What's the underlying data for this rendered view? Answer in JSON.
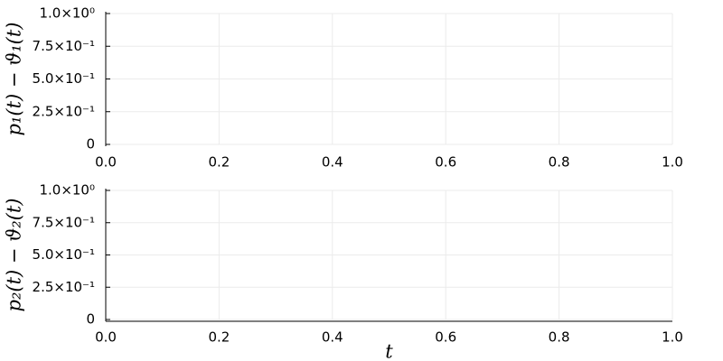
{
  "chart_data": [
    {
      "type": "line",
      "ylabel": "p₁(t) − ϑ₁(t)",
      "xlim": [
        0,
        1
      ],
      "ylim": [
        0,
        1
      ],
      "xticks": [
        {
          "value": 0,
          "label": "0.0"
        },
        0.2,
        0.4,
        0.6,
        0.8,
        {
          "value": 1,
          "label": "1.0"
        }
      ],
      "yticks": [
        0,
        {
          "value": 0.25,
          "label": "2.5×10⁻¹"
        },
        {
          "value": 0.5,
          "label": "5.0×10⁻¹"
        },
        {
          "value": 0.75,
          "label": "7.5×10⁻¹"
        },
        {
          "value": 1,
          "label": "1.0×10⁰"
        }
      ],
      "grid": true
    },
    {
      "type": "line",
      "ylabel": "p₂(t) − ϑ₂(t)",
      "xlabel": "t",
      "xlim": [
        0,
        1
      ],
      "ylim": [
        0,
        1
      ],
      "xticks": [
        {
          "value": 0,
          "label": "0.0"
        },
        0.2,
        0.4,
        0.6,
        0.8,
        {
          "value": 1,
          "label": "1.0"
        }
      ],
      "yticks": [
        0,
        {
          "value": 0.25,
          "label": "2.5×10⁻¹"
        },
        {
          "value": 0.5,
          "label": "5.0×10⁻¹"
        },
        {
          "value": 0.75,
          "label": "7.5×10⁻¹"
        },
        {
          "value": 1,
          "label": "1.0×10⁰"
        }
      ],
      "grid": true
    }
  ]
}
